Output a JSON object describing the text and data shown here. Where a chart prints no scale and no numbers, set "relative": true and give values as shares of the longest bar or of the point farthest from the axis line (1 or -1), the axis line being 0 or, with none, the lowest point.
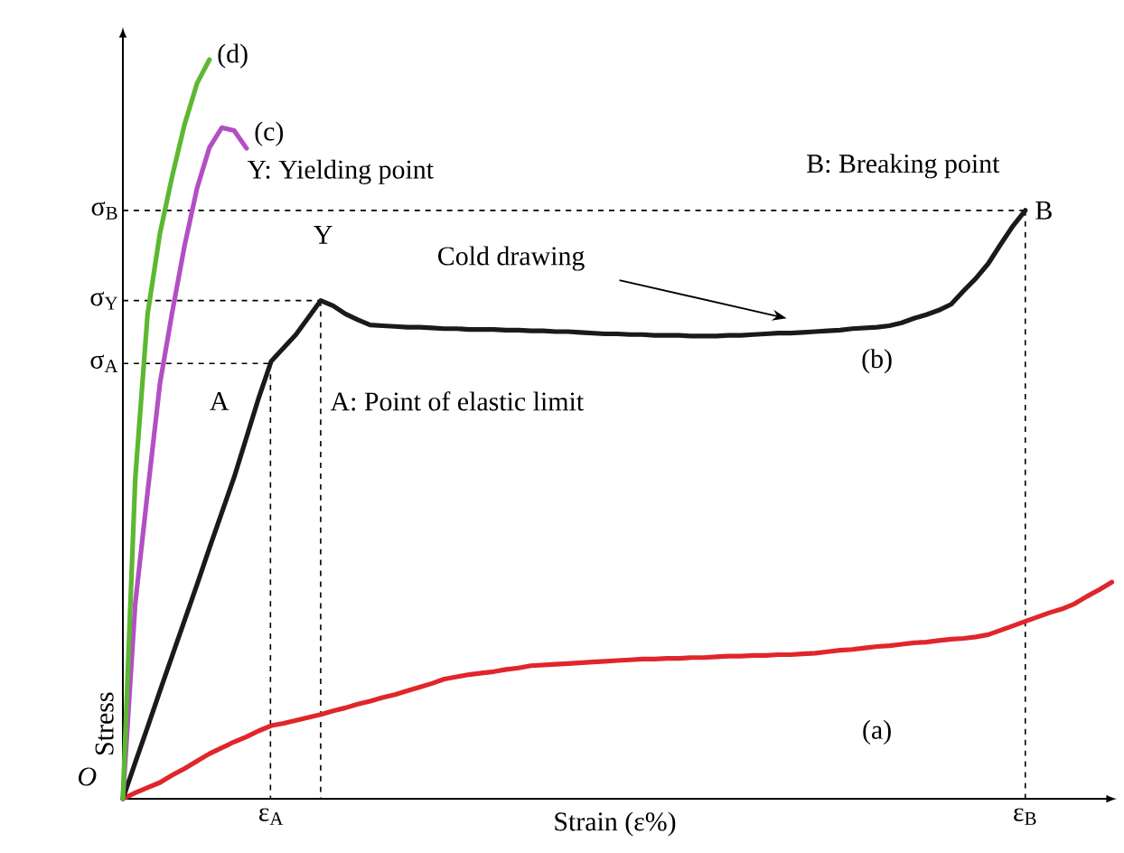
{
  "chart_data": {
    "type": "line",
    "relative": true,
    "xlabel": "Strain (ε%)",
    "ylabel": "Stress",
    "categories": [
      null,
      null,
      null,
      null,
      null,
      null,
      null,
      null,
      null,
      null,
      null,
      null,
      "ε$_{A}$",
      null,
      null,
      null,
      null,
      null,
      null,
      null,
      null,
      null,
      null,
      null,
      null,
      null,
      null,
      null,
      null,
      null,
      null,
      null,
      null,
      null,
      null,
      null,
      null,
      null,
      null,
      null,
      null,
      null,
      null,
      null,
      null,
      null,
      null,
      null,
      null,
      null,
      null,
      null,
      null,
      null,
      null,
      null,
      null,
      null,
      null,
      null,
      null,
      null,
      null,
      null,
      null,
      null,
      null,
      null,
      null,
      null,
      null,
      null,
      null,
      "ε$_{B}$",
      null,
      null,
      null,
      null,
      null,
      null,
      null
    ],
    "series": [
      {
        "name": "(a)",
        "color": "#e0262b",
        "values": [
          0,
          0.008,
          0.015,
          0.022,
          0.032,
          0.041,
          0.051,
          0.061,
          0.069,
          0.077,
          0.084,
          0.092,
          0.099,
          0.102,
          0.106,
          0.11,
          0.114,
          0.119,
          0.123,
          0.128,
          0.132,
          0.137,
          0.141,
          0.146,
          0.151,
          0.156,
          0.162,
          0.165,
          0.168,
          0.17,
          0.172,
          0.175,
          0.177,
          0.18,
          0.181,
          0.182,
          0.183,
          0.184,
          0.185,
          0.186,
          0.187,
          0.188,
          0.189,
          0.189,
          0.19,
          0.19,
          0.191,
          0.191,
          0.192,
          0.193,
          0.193,
          0.194,
          0.194,
          0.195,
          0.195,
          0.196,
          0.197,
          0.199,
          0.201,
          0.202,
          0.204,
          0.206,
          0.207,
          0.209,
          0.211,
          0.212,
          0.214,
          0.216,
          0.217,
          0.219,
          0.222,
          0.228,
          0.234,
          0.24,
          0.246,
          0.252,
          0.257,
          0.264,
          0.274,
          0.283,
          0.293
        ]
      },
      {
        "name": "(b)",
        "color": "#1a1a1a",
        "values": [
          0,
          0.049,
          0.097,
          0.146,
          0.194,
          0.242,
          0.29,
          0.339,
          0.387,
          0.435,
          0.489,
          0.543,
          0.592,
          0.61,
          0.628,
          0.651,
          0.674,
          0.667,
          0.656,
          0.648,
          0.641,
          0.64,
          0.639,
          0.638,
          0.638,
          0.637,
          0.636,
          0.636,
          0.635,
          0.635,
          0.635,
          0.634,
          0.634,
          0.633,
          0.633,
          0.632,
          0.632,
          0.631,
          0.63,
          0.629,
          0.629,
          0.628,
          0.628,
          0.627,
          0.627,
          0.627,
          0.626,
          0.626,
          0.626,
          0.627,
          0.627,
          0.628,
          0.629,
          0.63,
          0.63,
          0.631,
          0.632,
          0.633,
          0.634,
          0.636,
          0.637,
          0.638,
          0.64,
          0.644,
          0.65,
          0.655,
          0.661,
          0.669,
          0.687,
          0.704,
          0.724,
          0.75,
          0.775,
          0.796,
          null,
          null,
          null,
          null,
          null,
          null,
          null
        ]
      },
      {
        "name": "(c)",
        "color": "#b24fc4",
        "values": [
          0,
          0.264,
          0.415,
          0.562,
          0.659,
          0.749,
          0.826,
          0.881,
          0.908,
          0.904,
          0.88,
          null,
          null,
          null,
          null,
          null,
          null,
          null,
          null,
          null,
          null,
          null,
          null,
          null,
          null,
          null,
          null,
          null,
          null,
          null,
          null,
          null,
          null,
          null,
          null,
          null,
          null,
          null,
          null,
          null,
          null,
          null,
          null,
          null,
          null,
          null,
          null,
          null,
          null,
          null,
          null,
          null,
          null,
          null,
          null,
          null,
          null,
          null,
          null,
          null,
          null,
          null,
          null,
          null,
          null,
          null,
          null,
          null,
          null,
          null,
          null,
          null,
          null,
          null,
          null,
          null,
          null,
          null,
          null,
          null,
          null
        ]
      },
      {
        "name": "(d)",
        "color": "#5cb831",
        "values": [
          0,
          0.433,
          0.656,
          0.765,
          0.843,
          0.913,
          0.968,
          1.0,
          null,
          null,
          null,
          null,
          null,
          null,
          null,
          null,
          null,
          null,
          null,
          null,
          null,
          null,
          null,
          null,
          null,
          null,
          null,
          null,
          null,
          null,
          null,
          null,
          null,
          null,
          null,
          null,
          null,
          null,
          null,
          null,
          null,
          null,
          null,
          null,
          null,
          null,
          null,
          null,
          null,
          null,
          null,
          null,
          null,
          null,
          null,
          null,
          null,
          null,
          null,
          null,
          null,
          null,
          null,
          null,
          null,
          null,
          null,
          null,
          null,
          null,
          null,
          null,
          null,
          null,
          null,
          null,
          null,
          null,
          null,
          null,
          null
        ]
      }
    ],
    "ref_lines": [
      {
        "axis": "y",
        "value": 0.796,
        "label": "σ$_{B}$",
        "line_style": "dashed"
      },
      {
        "axis": "y",
        "value": 0.674,
        "label": "σ$_{Y}$",
        "line_style": "dashed"
      },
      {
        "axis": "y",
        "value": 0.589,
        "label": "σ$_{A}$",
        "line_style": "dashed"
      }
    ],
    "annotations": [
      "Y: Yielding point",
      "B: Breaking point",
      "A: Point of elastic limit",
      "Cold drawing",
      "A",
      "Y",
      "B",
      "O"
    ]
  }
}
